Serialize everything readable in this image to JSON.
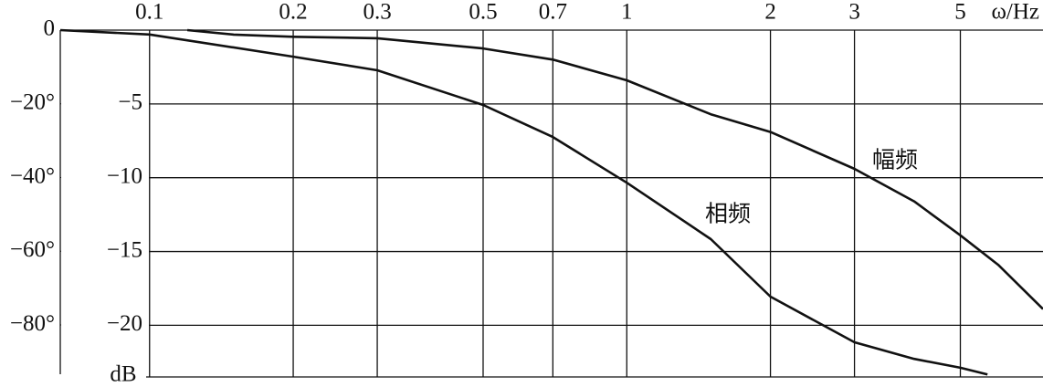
{
  "chart_data": {
    "type": "line",
    "xlabel": "ω/Hz",
    "ylabel": "dB",
    "xscale": "log",
    "grid": true,
    "color": "#111111",
    "xlim": [
      0.065,
      7.45
    ],
    "xticks": [
      0.1,
      0.2,
      0.3,
      0.5,
      0.7,
      1,
      2,
      3,
      5
    ],
    "ylim": [
      0,
      -23.5
    ],
    "yticks": [
      {
        "value": -5,
        "label": "−5"
      },
      {
        "value": -10,
        "label": "−10"
      },
      {
        "value": -15,
        "label": "−15"
      },
      {
        "value": -20,
        "label": "−20"
      }
    ],
    "y2lim": [
      0,
      -94.1
    ],
    "y2ticks": [
      0,
      {
        "value": -20,
        "label": "−20°"
      },
      {
        "value": -40,
        "label": "−40°"
      },
      {
        "value": -60,
        "label": "−60°"
      },
      {
        "value": -80,
        "label": "−80°"
      }
    ],
    "series": [
      {
        "name": "幅频",
        "color": "#111111",
        "x": [
          0.12,
          0.15,
          0.2,
          0.3,
          0.5,
          0.7,
          1,
          1.5,
          2,
          3,
          4,
          5,
          6,
          7.45
        ],
        "values": [
          0,
          -0.3,
          -0.45,
          -0.55,
          -1.24,
          -2.0,
          -3.4,
          -5.7,
          -6.9,
          -9.4,
          -11.6,
          -13.9,
          -15.9,
          -18.9
        ]
      },
      {
        "name": "相频",
        "color": "#111111",
        "axis": "y2",
        "x": [
          0.065,
          0.1,
          0.2,
          0.3,
          0.5,
          0.7,
          1,
          1.5,
          2,
          3,
          4,
          5,
          5.7
        ],
        "values": [
          0,
          -1.2,
          -7.2,
          -10.9,
          -20.3,
          -29,
          -41.4,
          -56.7,
          -72.3,
          -84.7,
          -89.2,
          -91.6,
          -93.4
        ]
      }
    ]
  }
}
